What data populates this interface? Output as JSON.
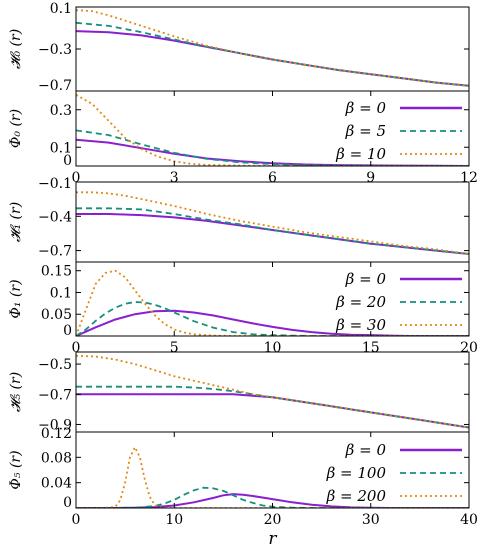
{
  "chart_data": [
    {
      "type": "line",
      "panel_label": "𝓗₀ (r)",
      "xlim": [
        0,
        12
      ],
      "ylim": [
        -0.7,
        0.1
      ],
      "yticks": [
        "0.1",
        "−0.3",
        "−0.7"
      ],
      "ytick_values": [
        0.1,
        -0.3,
        -0.7
      ],
      "xticks": [],
      "xtick_values": [],
      "grid": false,
      "series": [
        {
          "key": "b0",
          "x": [
            0,
            1,
            2,
            3,
            4,
            5,
            6,
            7,
            8,
            9,
            10,
            11,
            12
          ],
          "y": [
            -0.13,
            -0.14,
            -0.17,
            -0.22,
            -0.28,
            -0.34,
            -0.4,
            -0.45,
            -0.5,
            -0.54,
            -0.58,
            -0.62,
            -0.65
          ]
        },
        {
          "key": "b1",
          "x": [
            0,
            1,
            2,
            3,
            4,
            5,
            6,
            7,
            8,
            9,
            10,
            11,
            12
          ],
          "y": [
            -0.05,
            -0.08,
            -0.14,
            -0.21,
            -0.28,
            -0.34,
            -0.4,
            -0.45,
            -0.5,
            -0.54,
            -0.58,
            -0.62,
            -0.65
          ]
        },
        {
          "key": "b2",
          "x": [
            0,
            0.5,
            1,
            1.5,
            2,
            2.5,
            3,
            4,
            5,
            6,
            7,
            8,
            9,
            10,
            11,
            12
          ],
          "y": [
            0.07,
            0.06,
            0.02,
            -0.03,
            -0.08,
            -0.13,
            -0.18,
            -0.27,
            -0.34,
            -0.4,
            -0.45,
            -0.5,
            -0.54,
            -0.58,
            -0.62,
            -0.65
          ]
        }
      ]
    },
    {
      "type": "line",
      "panel_label": "Φ₀ (r)",
      "xlim": [
        0,
        12
      ],
      "ylim": [
        0,
        0.4
      ],
      "yticks": [
        "0",
        "0.1",
        "0.3"
      ],
      "ytick_values": [
        0,
        0.1,
        0.3
      ],
      "xticks": [
        "0",
        "3",
        "6",
        "9",
        "12"
      ],
      "xtick_values": [
        0,
        3,
        6,
        9,
        12
      ],
      "legend": {
        "position": "top-right",
        "entries": [
          "β =  0",
          "β =  5",
          "β = 10"
        ]
      },
      "series": [
        {
          "key": "b0",
          "x": [
            0,
            1,
            2,
            3,
            4,
            5,
            6,
            7,
            8,
            9,
            10,
            11,
            12
          ],
          "y": [
            0.14,
            0.125,
            0.095,
            0.065,
            0.04,
            0.025,
            0.015,
            0.008,
            0.005,
            0.003,
            0.002,
            0.001,
            0
          ]
        },
        {
          "key": "b1",
          "x": [
            0,
            1,
            2,
            3,
            4,
            5,
            6,
            7,
            8,
            9,
            10,
            11,
            12
          ],
          "y": [
            0.19,
            0.165,
            0.115,
            0.07,
            0.038,
            0.02,
            0.01,
            0.005,
            0.002,
            0.001,
            0,
            0,
            0
          ]
        },
        {
          "key": "b2",
          "x": [
            0,
            0.5,
            1,
            1.5,
            2,
            2.5,
            3,
            3.5,
            4,
            5,
            6,
            7,
            8,
            9,
            10,
            11,
            12
          ],
          "y": [
            0.38,
            0.33,
            0.24,
            0.15,
            0.09,
            0.05,
            0.025,
            0.012,
            0.006,
            0.002,
            0,
            0,
            0,
            0,
            0,
            0,
            0
          ]
        }
      ]
    },
    {
      "type": "line",
      "panel_label": "𝓗₁ (r)",
      "xlim": [
        0,
        12
      ],
      "ylim": [
        -0.8,
        -0.1
      ],
      "yticks": [
        "−0.1",
        "−0.4",
        "−0.7"
      ],
      "ytick_values": [
        -0.1,
        -0.4,
        -0.7
      ],
      "xticks": [],
      "xtick_values": [],
      "series": [
        {
          "key": "b0",
          "x": [
            0,
            1,
            2,
            3,
            4,
            5,
            6,
            7,
            8,
            9,
            10,
            11,
            12
          ],
          "y": [
            -0.38,
            -0.38,
            -0.39,
            -0.41,
            -0.44,
            -0.48,
            -0.52,
            -0.56,
            -0.6,
            -0.64,
            -0.67,
            -0.7,
            -0.73
          ]
        },
        {
          "key": "b1",
          "x": [
            0,
            1,
            2,
            3,
            4,
            5,
            6,
            7,
            8,
            9,
            10,
            11,
            12
          ],
          "y": [
            -0.33,
            -0.33,
            -0.34,
            -0.38,
            -0.43,
            -0.47,
            -0.52,
            -0.56,
            -0.6,
            -0.64,
            -0.67,
            -0.7,
            -0.73
          ]
        },
        {
          "key": "b2",
          "x": [
            0,
            0.5,
            1,
            1.5,
            2,
            2.5,
            3,
            4,
            5,
            6,
            7,
            8,
            9,
            10,
            11,
            12
          ],
          "y": [
            -0.19,
            -0.19,
            -0.2,
            -0.22,
            -0.25,
            -0.28,
            -0.31,
            -0.38,
            -0.44,
            -0.49,
            -0.54,
            -0.58,
            -0.62,
            -0.66,
            -0.69,
            -0.73
          ]
        }
      ]
    },
    {
      "type": "line",
      "panel_label": "Φ₁ (r)",
      "xlim": [
        0,
        20
      ],
      "ylim": [
        0,
        0.17
      ],
      "yticks": [
        "0",
        "0.05",
        "0.1",
        "0.15"
      ],
      "ytick_values": [
        0,
        0.05,
        0.1,
        0.15
      ],
      "xticks": [
        "0",
        "5",
        "10",
        "15",
        "20"
      ],
      "xtick_values": [
        0,
        5,
        10,
        15,
        20
      ],
      "legend": {
        "position": "top-right",
        "entries": [
          "β =  0",
          "β = 20",
          "β = 30"
        ]
      },
      "series": [
        {
          "key": "b0",
          "x": [
            0,
            1,
            2,
            3,
            4,
            5,
            6,
            7,
            8,
            9,
            10,
            11,
            12,
            13,
            14,
            15,
            16,
            17,
            18,
            19,
            20
          ],
          "y": [
            0,
            0.02,
            0.038,
            0.05,
            0.057,
            0.058,
            0.054,
            0.047,
            0.038,
            0.029,
            0.021,
            0.014,
            0.009,
            0.005,
            0.003,
            0.002,
            0.001,
            0,
            0,
            0,
            0
          ]
        },
        {
          "key": "b1",
          "x": [
            0,
            0.5,
            1,
            1.5,
            2,
            2.5,
            3,
            3.5,
            4,
            4.5,
            5,
            5.5,
            6,
            7,
            8,
            9,
            10,
            11,
            12,
            14,
            16,
            18,
            20
          ],
          "y": [
            0,
            0.015,
            0.035,
            0.052,
            0.065,
            0.074,
            0.078,
            0.077,
            0.072,
            0.064,
            0.054,
            0.044,
            0.034,
            0.019,
            0.009,
            0.004,
            0.002,
            0.001,
            0,
            0,
            0,
            0,
            0
          ]
        },
        {
          "key": "b2",
          "x": [
            0,
            0.5,
            1,
            1.5,
            2,
            2.5,
            3,
            3.5,
            4,
            4.5,
            5,
            5.5,
            6,
            7,
            8,
            9,
            10,
            12,
            14,
            16,
            18,
            20
          ],
          "y": [
            0,
            0.06,
            0.12,
            0.145,
            0.15,
            0.135,
            0.105,
            0.075,
            0.048,
            0.028,
            0.015,
            0.008,
            0.004,
            0.001,
            0,
            0,
            0,
            0,
            0,
            0,
            0,
            0
          ]
        }
      ]
    },
    {
      "type": "line",
      "panel_label": "𝓗₅ (r)",
      "xlim": [
        0,
        40
      ],
      "ylim": [
        -0.95,
        -0.42
      ],
      "yticks": [
        "−0.5",
        "−0.7",
        "−0.9"
      ],
      "ytick_values": [
        -0.5,
        -0.7,
        -0.9
      ],
      "xticks": [],
      "xtick_values": [],
      "series": [
        {
          "key": "b0",
          "x": [
            0,
            2,
            4,
            6,
            8,
            10,
            12,
            14,
            16,
            18,
            20,
            22,
            24,
            26,
            28,
            30,
            32,
            34,
            36,
            38,
            40
          ],
          "y": [
            -0.7,
            -0.7,
            -0.7,
            -0.7,
            -0.7,
            -0.7,
            -0.7,
            -0.7,
            -0.7,
            -0.71,
            -0.72,
            -0.74,
            -0.76,
            -0.78,
            -0.8,
            -0.82,
            -0.84,
            -0.86,
            -0.88,
            -0.9,
            -0.92
          ]
        },
        {
          "key": "b1",
          "x": [
            0,
            2,
            4,
            6,
            8,
            10,
            12,
            14,
            16,
            18,
            20,
            22,
            24,
            26,
            28,
            30,
            32,
            34,
            36,
            38,
            40
          ],
          "y": [
            -0.65,
            -0.65,
            -0.65,
            -0.65,
            -0.65,
            -0.65,
            -0.655,
            -0.665,
            -0.68,
            -0.7,
            -0.72,
            -0.74,
            -0.76,
            -0.78,
            -0.8,
            -0.82,
            -0.84,
            -0.86,
            -0.88,
            -0.9,
            -0.92
          ]
        },
        {
          "key": "b2",
          "x": [
            0,
            2,
            4,
            6,
            8,
            10,
            12,
            14,
            16,
            18,
            20,
            22,
            24,
            26,
            28,
            30,
            32,
            34,
            36,
            38,
            40
          ],
          "y": [
            -0.445,
            -0.45,
            -0.47,
            -0.5,
            -0.54,
            -0.58,
            -0.61,
            -0.64,
            -0.67,
            -0.7,
            -0.72,
            -0.74,
            -0.76,
            -0.78,
            -0.8,
            -0.82,
            -0.84,
            -0.86,
            -0.88,
            -0.9,
            -0.92
          ]
        }
      ]
    },
    {
      "type": "line",
      "panel_label": "Φ₅ (r)",
      "xlim": [
        0,
        40
      ],
      "ylim": [
        0,
        0.12
      ],
      "yticks": [
        "0",
        "0.04",
        "0.08",
        "0.12"
      ],
      "ytick_values": [
        0,
        0.04,
        0.08,
        0.12
      ],
      "xticks": [
        "0",
        "10",
        "20",
        "30",
        "40"
      ],
      "xtick_values": [
        0,
        10,
        20,
        30,
        40
      ],
      "xlabel": "r",
      "legend": {
        "position": "top-right",
        "entries": [
          "β =   0",
          "β = 100",
          "β = 200"
        ]
      },
      "series": [
        {
          "key": "b0",
          "x": [
            0,
            2,
            4,
            6,
            8,
            10,
            12,
            14,
            15,
            16,
            17,
            18,
            20,
            22,
            24,
            26,
            28,
            30,
            32,
            35,
            40
          ],
          "y": [
            0,
            0,
            0,
            0.0005,
            0.0015,
            0.004,
            0.009,
            0.016,
            0.02,
            0.022,
            0.021,
            0.019,
            0.014,
            0.009,
            0.005,
            0.0025,
            0.001,
            0.0005,
            0,
            0,
            0
          ]
        },
        {
          "key": "b1",
          "x": [
            0,
            4,
            6,
            8,
            9,
            10,
            11,
            12,
            13,
            14,
            15,
            16,
            17,
            18,
            19,
            20,
            22,
            24,
            26,
            30,
            35,
            40
          ],
          "y": [
            0,
            0,
            0.0005,
            0.003,
            0.007,
            0.013,
            0.021,
            0.028,
            0.032,
            0.031,
            0.027,
            0.02,
            0.013,
            0.008,
            0.004,
            0.002,
            0.0005,
            0,
            0,
            0,
            0,
            0
          ]
        },
        {
          "key": "b2",
          "x": [
            0,
            3,
            4,
            4.5,
            5,
            5.5,
            6,
            6.5,
            7,
            7.5,
            8,
            8.5,
            9,
            10,
            12,
            15,
            20,
            30,
            40
          ],
          "y": [
            0,
            0,
            0.002,
            0.012,
            0.04,
            0.08,
            0.096,
            0.08,
            0.045,
            0.018,
            0.005,
            0.001,
            0,
            0,
            0,
            0,
            0,
            0,
            0
          ]
        }
      ]
    }
  ],
  "style": {
    "colors": {
      "b0": "#8a1fcf",
      "b1": "#178f7e",
      "b2": "#e08a12"
    },
    "dash": {
      "b0": "",
      "b1": "6,4",
      "b2": "2,3"
    }
  }
}
